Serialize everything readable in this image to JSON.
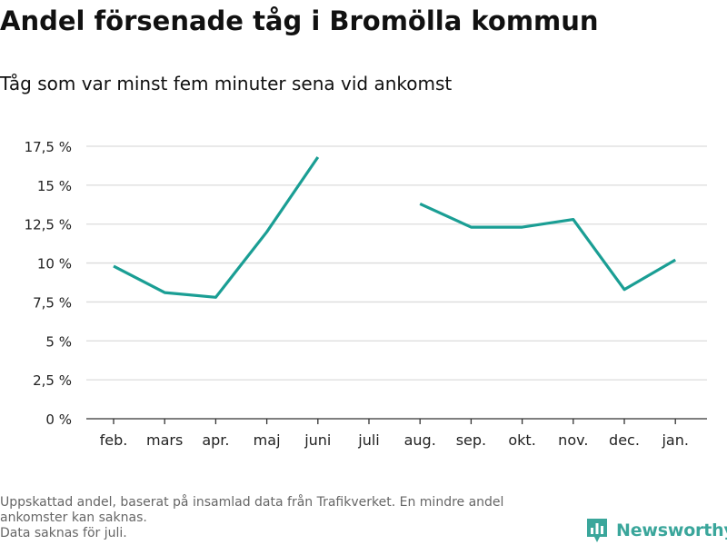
{
  "header": {
    "title": "Andel försenade tåg i Bromölla kommun",
    "subtitle": "Tåg som var minst fem minuter sena vid ankomst"
  },
  "chart_data": {
    "type": "line",
    "categories": [
      "feb.",
      "mars",
      "apr.",
      "maj",
      "juni",
      "juli",
      "aug.",
      "sep.",
      "okt.",
      "nov.",
      "dec.",
      "jan."
    ],
    "series": [
      {
        "values": [
          9.8,
          8.1,
          7.8,
          12.0,
          16.8,
          null,
          13.8,
          12.3,
          12.3,
          12.8,
          8.3,
          10.2
        ]
      }
    ],
    "y_ticks": [
      "0 %",
      "2,5 %",
      "5 %",
      "7,5 %",
      "10 %",
      "12,5 %",
      "15 %",
      "17,5 %"
    ],
    "y_tick_values": [
      0,
      2.5,
      5,
      7.5,
      10,
      12.5,
      15,
      17.5
    ],
    "ylim": [
      0,
      17.5
    ],
    "grid": true,
    "line_color": "#1a9e94",
    "grid_color": "#dcdcdc"
  },
  "footnote": {
    "lines": [
      "Uppskattad andel, baserat på insamlad data från Trafikverket. En mindre andel",
      "ankomster kan saknas.",
      "Data saknas för juli."
    ]
  },
  "brand": {
    "name": "Newsworthy",
    "icon": "newsworthy-logo-icon",
    "color": "#3aa69b"
  }
}
